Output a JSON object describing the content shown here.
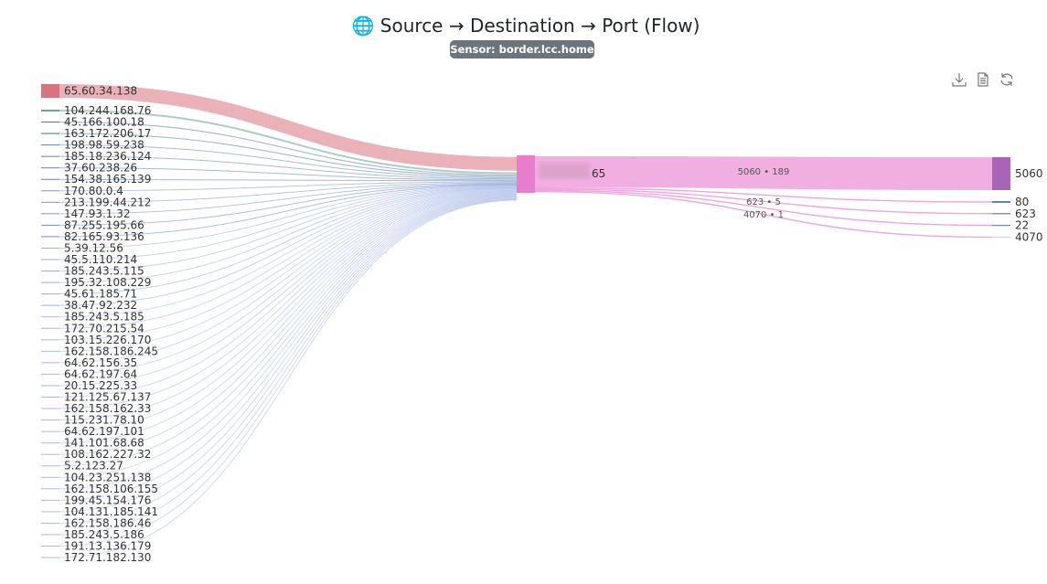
{
  "header": {
    "icon": "globe-icon",
    "title": "Source → Destination → Port (Flow)",
    "sensor_badge": "Sensor: border.lcc.home"
  },
  "toolbar": [
    {
      "icon": "download-icon"
    },
    {
      "icon": "document-icon"
    },
    {
      "icon": "refresh-icon"
    }
  ],
  "chart_data": {
    "type": "sankey",
    "title": "Source → Destination → Port (Flow)",
    "columns": [
      "Source",
      "Destination",
      "Port"
    ],
    "sources": [
      {
        "name": "65.60.34.138",
        "value": 75,
        "color": "#d9737d"
      },
      {
        "name": "104.244.168.76",
        "value": 10,
        "color": "#6da38f"
      },
      {
        "name": "45.166.100.18",
        "value": 6,
        "color": "#5f86a6"
      },
      {
        "name": "163.172.206.17",
        "value": 6,
        "color": "#5f86a6"
      },
      {
        "name": "198.98.59.238",
        "value": 5,
        "color": "#5f86b6"
      },
      {
        "name": "185.18.236.124",
        "value": 5,
        "color": "#5f86b6"
      },
      {
        "name": "37.60.238.26",
        "value": 5,
        "color": "#5f80c0"
      },
      {
        "name": "154.38.165.139",
        "value": 4,
        "color": "#5f80c0"
      },
      {
        "name": "170.80.0.4",
        "value": 4,
        "color": "#7f96c8"
      },
      {
        "name": "213.199.44.212",
        "value": 4,
        "color": "#7f96c8"
      },
      {
        "name": "147.93.1.32",
        "value": 3,
        "color": "#7f96c8"
      },
      {
        "name": "87.255.195.66",
        "value": 3,
        "color": "#6f8ad0"
      },
      {
        "name": "82.165.93.136",
        "value": 3,
        "color": "#6f8ad0"
      },
      {
        "name": "5.39.12.56",
        "value": 2,
        "color": "#9aaee0"
      },
      {
        "name": "45.5.110.214",
        "value": 2,
        "color": "#9aaee0"
      },
      {
        "name": "185.243.5.115",
        "value": 2,
        "color": "#9aaee0"
      },
      {
        "name": "195.32.108.229",
        "value": 2,
        "color": "#9aaee0"
      },
      {
        "name": "45.61.185.71",
        "value": 2,
        "color": "#9aaee0"
      },
      {
        "name": "38.47.92.232",
        "value": 2,
        "color": "#9aaee0"
      },
      {
        "name": "185.243.5.185",
        "value": 1,
        "color": "#a9b9e8"
      },
      {
        "name": "172.70.215.54",
        "value": 1,
        "color": "#a9b9e8"
      },
      {
        "name": "103.15.226.170",
        "value": 1,
        "color": "#a9b9e8"
      },
      {
        "name": "162.158.186.245",
        "value": 1,
        "color": "#a9b9e8"
      },
      {
        "name": "64.62.156.35",
        "value": 1,
        "color": "#a9b9e8"
      },
      {
        "name": "64.62.197.64",
        "value": 1,
        "color": "#a9b9e8"
      },
      {
        "name": "20.15.225.33",
        "value": 1,
        "color": "#a9b9e8"
      },
      {
        "name": "121.125.67.137",
        "value": 1,
        "color": "#a9b9e8"
      },
      {
        "name": "162.158.162.33",
        "value": 1,
        "color": "#a9b9e8"
      },
      {
        "name": "115.231.78.10",
        "value": 1,
        "color": "#a9b9e8"
      },
      {
        "name": "64.62.197.101",
        "value": 1,
        "color": "#a9b9e8"
      },
      {
        "name": "141.101.68.68",
        "value": 1,
        "color": "#a9b9e8"
      },
      {
        "name": "108.162.227.32",
        "value": 1,
        "color": "#a9b9e8"
      },
      {
        "name": "5.2.123.27",
        "value": 1,
        "color": "#a9b9e8"
      },
      {
        "name": "104.23.251.138",
        "value": 1,
        "color": "#a9b9e8"
      },
      {
        "name": "162.158.106.155",
        "value": 1,
        "color": "#a9b9e8"
      },
      {
        "name": "199.45.154.176",
        "value": 1,
        "color": "#a9b9e8"
      },
      {
        "name": "104.131.185.141",
        "value": 1,
        "color": "#a9b9e8"
      },
      {
        "name": "162.158.186.46",
        "value": 1,
        "color": "#a9b9e8"
      },
      {
        "name": "185.243.5.186",
        "value": 1,
        "color": "#a9b9e8"
      },
      {
        "name": "191.13.136.179",
        "value": 1,
        "color": "#a9b9e8"
      },
      {
        "name": "172.71.182.130",
        "value": 1,
        "color": "#a9b9e8"
      }
    ],
    "destination": {
      "name": "65",
      "redacted": true,
      "color": "#e87dcb"
    },
    "ports": [
      {
        "name": "5060",
        "value": 189,
        "link_label": "5060 • 189",
        "color": "#a865b8"
      },
      {
        "name": "80",
        "value": 2,
        "color": "#5f86a6"
      },
      {
        "name": "623",
        "value": 5,
        "link_label": "623 • 5",
        "color": "#7f96c8"
      },
      {
        "name": "22",
        "value": 1,
        "color": "#6f8ad0"
      },
      {
        "name": "4070",
        "value": 1,
        "link_label": "4070 • 1",
        "color": "#c9d2f2"
      }
    ]
  }
}
